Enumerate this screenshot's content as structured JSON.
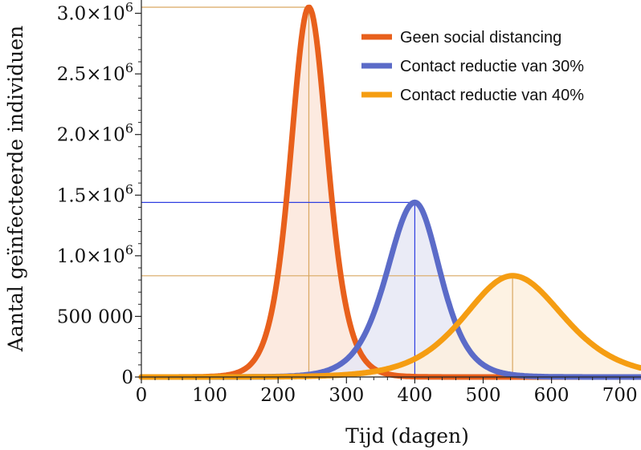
{
  "chart_data": {
    "type": "area",
    "title": "",
    "xlabel": "Tijd (dagen)",
    "ylabel": "Aantal geïnfecteerde individuen",
    "xlim": [
      0,
      730
    ],
    "ylim": [
      0,
      3100000
    ],
    "x_ticks": [
      0,
      100,
      200,
      300,
      400,
      500,
      600,
      700
    ],
    "x_tick_labels": [
      "0",
      "100",
      "200",
      "300",
      "400",
      "500",
      "600",
      "700"
    ],
    "y_ticks": [
      0,
      500000,
      1000000,
      1500000,
      2000000,
      2500000,
      3000000
    ],
    "y_tick_labels": [
      {
        "mantissa": "0",
        "exp": ""
      },
      {
        "mantissa": "500 000",
        "exp": ""
      },
      {
        "mantissa": "1.0×10",
        "exp": "6"
      },
      {
        "mantissa": "1.5×10",
        "exp": "6"
      },
      {
        "mantissa": "2.0×10",
        "exp": "6"
      },
      {
        "mantissa": "2.5×10",
        "exp": "6"
      },
      {
        "mantissa": "3.0×10",
        "exp": "6"
      }
    ],
    "legend_position": "top-right",
    "grid": false,
    "series": [
      {
        "name": "Geen social distancing",
        "color": "#e8601c",
        "fill": "#fbe6da",
        "peak_x": 245,
        "peak_y": 3050000,
        "left_width": 36,
        "right_width": 37
      },
      {
        "name": "Contact reductie van 30%",
        "color": "#5b6bc8",
        "fill": "#e6e8f5",
        "peak_x": 400,
        "peak_y": 1440000,
        "left_width": 55,
        "right_width": 50
      },
      {
        "name": "Contact reductie van 40%",
        "color": "#f59d12",
        "fill": "#fdf0de",
        "peak_x": 543,
        "peak_y": 835000,
        "left_width": 95,
        "right_width": 100
      }
    ],
    "peak_markers": [
      {
        "series": 0,
        "x": 245,
        "y": 3050000,
        "color": "#d9a760"
      },
      {
        "series": 1,
        "x": 400,
        "y": 1440000,
        "color": "#2f3fe0"
      },
      {
        "series": 2,
        "x": 543,
        "y": 835000,
        "color": "#d9a760"
      }
    ]
  }
}
